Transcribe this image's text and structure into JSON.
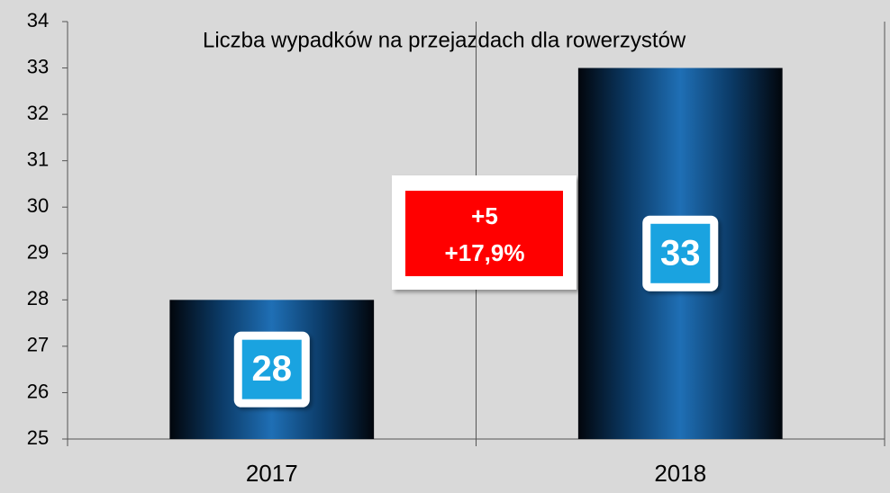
{
  "chart_data": {
    "type": "bar",
    "title": "Liczba wypadków na przejazdach dla rowerzystów",
    "categories": [
      "2017",
      "2018"
    ],
    "values": [
      28,
      33
    ],
    "ylim": [
      25,
      34
    ],
    "yticks": [
      25,
      26,
      27,
      28,
      29,
      30,
      31,
      32,
      33,
      34
    ],
    "annotations": [
      "+5",
      "+17,9%"
    ]
  }
}
